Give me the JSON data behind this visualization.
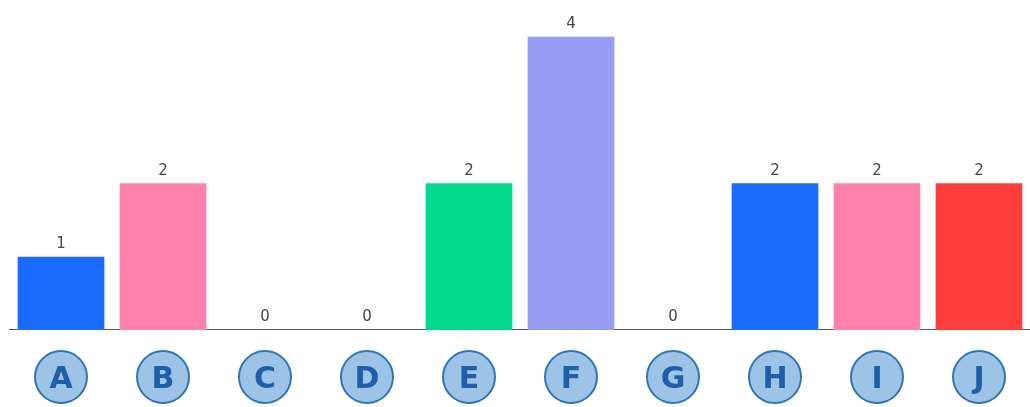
{
  "chart_data": {
    "type": "bar",
    "categories": [
      "A",
      "B",
      "C",
      "D",
      "E",
      "F",
      "G",
      "H",
      "I",
      "J"
    ],
    "values": [
      1,
      2,
      0,
      0,
      2,
      4,
      0,
      2,
      2,
      2
    ],
    "colors": [
      "#1a6cff",
      "#ff80aa",
      "#1a6cff",
      "#1a6cff",
      "#00d98c",
      "#979cf5",
      "#1a6cff",
      "#1a6cff",
      "#ff80aa",
      "#ff3d3d"
    ],
    "data_labels": true,
    "grid": false,
    "legend": false
  }
}
